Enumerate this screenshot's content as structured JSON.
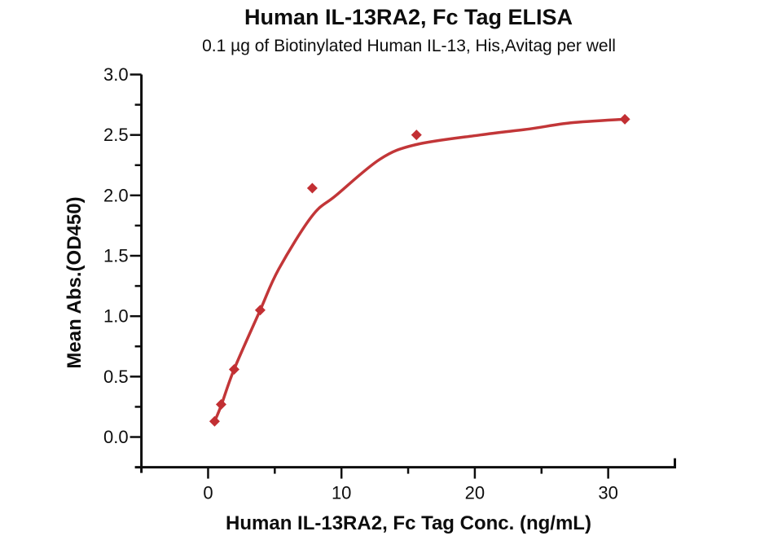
{
  "chart_data": {
    "type": "scatter",
    "title": "Human IL-13RA2, Fc Tag ELISA",
    "subtitle": "0.1 µg of Biotinylated Human IL-13, His,Avitag per well",
    "xlabel": "Human IL-13RA2, Fc Tag Conc. (ng/mL)",
    "ylabel": "Mean Abs.(OD450)",
    "xlim": [
      -5,
      35
    ],
    "ylim": [
      -0.25,
      3.0
    ],
    "x_major_ticks": [
      0,
      10,
      20,
      30
    ],
    "x_tick_labels": [
      "0",
      "10",
      "20",
      "30"
    ],
    "x_minor_ticks": [
      5,
      15,
      25
    ],
    "y_major_ticks": [
      0.0,
      0.5,
      1.0,
      1.5,
      2.0,
      2.5,
      3.0
    ],
    "y_tick_labels": [
      "0.0",
      "0.5",
      "1.0",
      "1.5",
      "2.0",
      "2.5",
      "3.0"
    ],
    "y_minor_ticks": [
      0.25,
      0.75,
      1.25,
      1.75,
      2.25,
      2.75
    ],
    "grid": false,
    "legend": null,
    "marker": "diamond",
    "series": [
      {
        "name": "Human IL-13RA2, Fc Tag",
        "x": [
          0.488,
          0.977,
          1.953,
          3.906,
          7.813,
          15.625,
          31.25
        ],
        "y": [
          0.13,
          0.27,
          0.56,
          1.05,
          2.06,
          2.5,
          2.63
        ]
      }
    ],
    "fit_curve": [
      [
        0.488,
        0.13
      ],
      [
        0.977,
        0.26
      ],
      [
        1.953,
        0.56
      ],
      [
        3.906,
        1.05
      ],
      [
        5.3,
        1.39
      ],
      [
        7.8,
        1.83
      ],
      [
        9.6,
        2.0
      ],
      [
        12.9,
        2.3
      ],
      [
        15.6,
        2.42
      ],
      [
        20.4,
        2.5
      ],
      [
        24.1,
        2.55
      ],
      [
        27.2,
        2.6
      ],
      [
        31.25,
        2.63
      ]
    ],
    "colors": {
      "curve": "#c23638",
      "marker": "#c22f33",
      "axis": "#0d0d0d",
      "text": "#0d0d0d"
    }
  }
}
